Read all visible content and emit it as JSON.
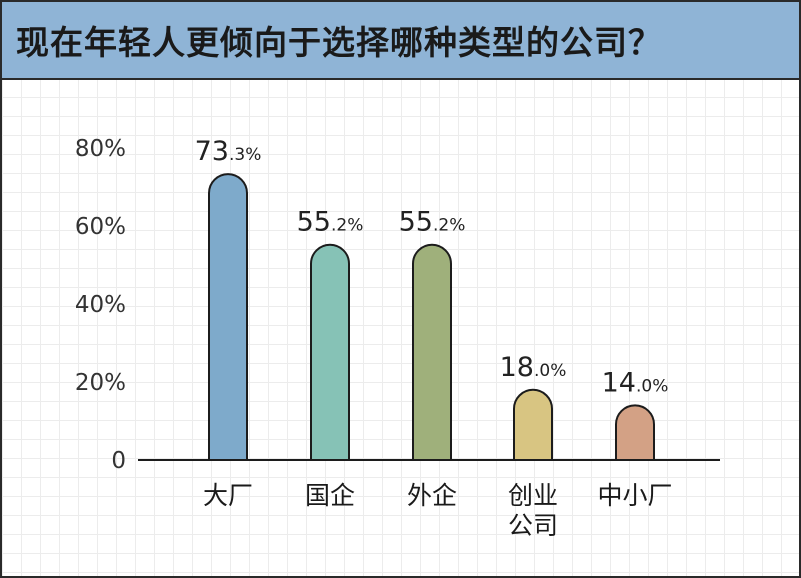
{
  "chart_data": {
    "type": "bar",
    "title": "现在年轻人更倾向于选择哪种类型的公司？",
    "categories": [
      [
        "大厂"
      ],
      [
        "国企"
      ],
      [
        "外企"
      ],
      [
        "创业",
        "公司"
      ],
      [
        "中小厂"
      ]
    ],
    "values": [
      73.3,
      55.2,
      55.2,
      18.0,
      14.0
    ],
    "value_labels": [
      {
        "int": "73",
        "dec": ".3%"
      },
      {
        "int": "55",
        "dec": ".2%"
      },
      {
        "int": "55",
        "dec": ".2%"
      },
      {
        "int": "18",
        "dec": ".0%"
      },
      {
        "int": "14",
        "dec": ".0%"
      }
    ],
    "colors": [
      "#7eaacb",
      "#86c2b6",
      "#9fb07b",
      "#d8c582",
      "#d3a185"
    ],
    "yticks": [
      0,
      20,
      40,
      60,
      80
    ],
    "ytick_labels": [
      "0",
      "20%",
      "40%",
      "60%",
      "80%"
    ],
    "ylim": [
      0,
      80
    ],
    "grid": true
  }
}
